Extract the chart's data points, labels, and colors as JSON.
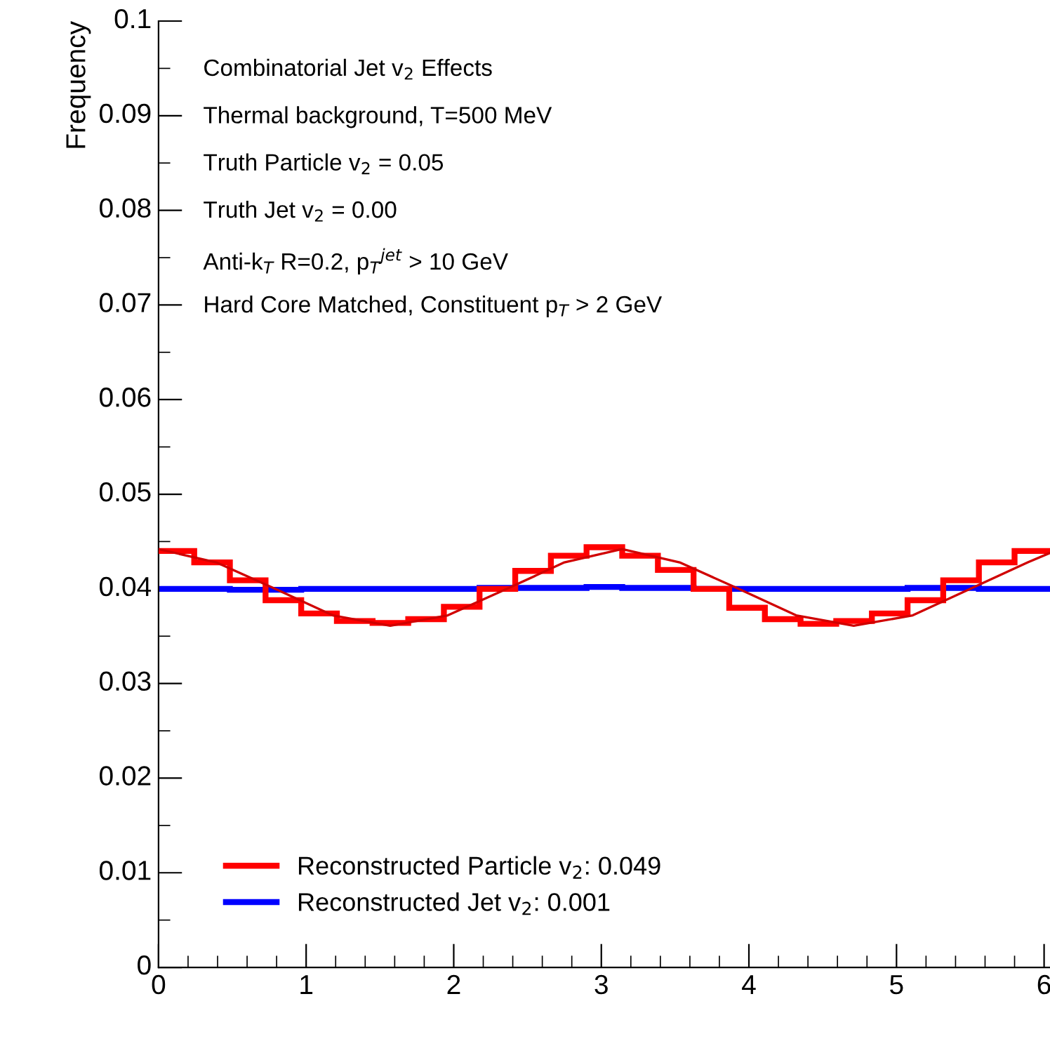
{
  "chart_data": {
    "type": "histogram",
    "ylabel": "Frequency",
    "annotations": [
      "Combinatorial Jet v$_{2}$ Effects",
      "Thermal background, T=500 MeV",
      "Truth Particle v$_{2}$ = 0.05",
      "Truth Jet v$_{2}$ = 0.00",
      "Anti-k$_{T}$ R=0.2, p$_{T}$$^{jet}$ > 10 GeV",
      "Hard Core Matched, Constituent p$_{T}$ > 2 GeV"
    ],
    "bins": [
      0,
      0.2417,
      0.4833,
      0.725,
      0.9666,
      1.2083,
      1.45,
      1.6916,
      1.9333,
      2.1749,
      2.4166,
      2.6583,
      2.8999,
      3.1416,
      3.3833,
      3.6249,
      3.8666,
      4.1082,
      4.3499,
      4.5916,
      4.8332,
      5.0749,
      5.3165,
      5.5582,
      5.7999,
      6.0415
    ],
    "series": [
      {
        "name": "Reconstructed Particle v$_{2}$: 0.049",
        "color": "#ff0000",
        "values": [
          0.044,
          0.0428,
          0.0409,
          0.0388,
          0.0374,
          0.0366,
          0.0364,
          0.0368,
          0.0381,
          0.04,
          0.0419,
          0.0435,
          0.0444,
          0.0435,
          0.042,
          0.04,
          0.038,
          0.0368,
          0.0363,
          0.0366,
          0.0374,
          0.0388,
          0.0409,
          0.0428,
          0.044
        ]
      },
      {
        "name": "Reconstructed Jet v$_{2}$: 0.001",
        "color": "#0000ff",
        "values": [
          0.04,
          0.04,
          0.0399,
          0.0399,
          0.04,
          0.04,
          0.04,
          0.04,
          0.04,
          0.0401,
          0.0401,
          0.0401,
          0.0402,
          0.0401,
          0.0401,
          0.04,
          0.04,
          0.04,
          0.04,
          0.04,
          0.04,
          0.0401,
          0.0401,
          0.04,
          0.04
        ]
      },
      {
        "type": "line",
        "color": "#d00000",
        "x": [
          0,
          0.39,
          0.79,
          1.18,
          1.57,
          1.96,
          2.36,
          2.75,
          3.14,
          3.53,
          3.93,
          4.32,
          4.71,
          5.11,
          5.5,
          5.89,
          6.04
        ],
        "values": [
          0.0442,
          0.0428,
          0.04,
          0.0372,
          0.0361,
          0.0372,
          0.04,
          0.0428,
          0.0442,
          0.0428,
          0.04,
          0.0372,
          0.0361,
          0.0372,
          0.04,
          0.0428,
          0.0438
        ]
      }
    ],
    "xlim": [
      0,
      6.04
    ],
    "xticks": [
      0,
      1,
      2,
      3,
      4,
      5,
      6
    ],
    "ylim": [
      0,
      0.1
    ],
    "yticks": [
      0,
      0.01,
      0.02,
      0.03,
      0.04,
      0.05,
      0.06,
      0.07,
      0.08,
      0.09,
      0.1
    ],
    "legend": "bottom left",
    "grid": false
  }
}
